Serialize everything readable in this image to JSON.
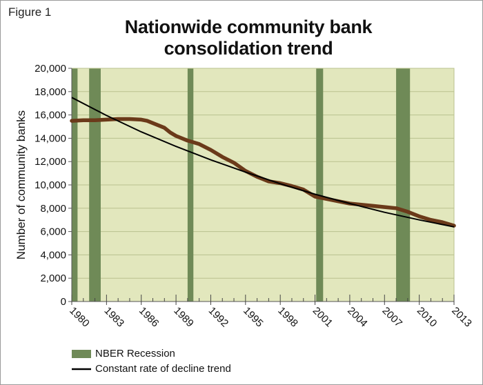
{
  "figure_label": "Figure 1",
  "chart_data": {
    "type": "line",
    "title": "Nationwide community bank consolidation trend",
    "title_lines": [
      "Nationwide community bank",
      "consolidation trend"
    ],
    "ylabel": "Number of community banks",
    "xlabel": "",
    "xlim": [
      1980,
      2013
    ],
    "ylim": [
      0,
      20000
    ],
    "x_ticks": [
      1980,
      1983,
      1986,
      1989,
      1992,
      1995,
      1998,
      2001,
      2004,
      2007,
      2010,
      2013
    ],
    "y_ticks": [
      0,
      2000,
      4000,
      6000,
      8000,
      10000,
      12000,
      14000,
      16000,
      18000,
      20000
    ],
    "y_tick_labels": [
      "0",
      "2,000",
      "4,000",
      "6,000",
      "8,000",
      "10,000",
      "12,000",
      "14,000",
      "16,000",
      "18,000",
      "20,000"
    ],
    "grid": true,
    "legend_position": "bottom",
    "colors": {
      "plot_background": "#e2e7bd",
      "grid": "#b9c18e",
      "recession": "#6f8a57",
      "series": "#6b3a1a",
      "trend": "#000000"
    },
    "recessions": [
      {
        "start": 1980.0,
        "end": 1980.5
      },
      {
        "start": 1981.5,
        "end": 1982.5
      },
      {
        "start": 1990.0,
        "end": 1990.5
      },
      {
        "start": 2001.1,
        "end": 2001.7
      },
      {
        "start": 2008.0,
        "end": 2009.2
      }
    ],
    "series": [
      {
        "x": [
          1980,
          1981,
          1982,
          1983,
          1984,
          1985,
          1986,
          1986.5,
          1987,
          1988,
          1988.5,
          1989,
          1990,
          1991,
          1992,
          1993,
          1994,
          1995,
          1996,
          1997,
          1998,
          1999,
          2000,
          2001,
          2002,
          2003,
          2004,
          2005,
          2006,
          2007,
          2008,
          2009,
          2010,
          2011,
          2012,
          2013
        ],
        "y": [
          15500,
          15550,
          15550,
          15600,
          15650,
          15650,
          15600,
          15500,
          15300,
          14900,
          14500,
          14200,
          13800,
          13500,
          13000,
          12400,
          11900,
          11200,
          10700,
          10300,
          10150,
          9900,
          9600,
          9000,
          8800,
          8600,
          8400,
          8300,
          8200,
          8100,
          8000,
          7700,
          7300,
          7000,
          6800,
          6500
        ]
      },
      {
        "name": "Constant rate of decline trend",
        "x": [
          1980,
          1983,
          1986,
          1989,
          1992,
          1995,
          1998,
          2001,
          2004,
          2007,
          2010,
          2013
        ],
        "y": [
          17500,
          15950,
          14550,
          13300,
          12150,
          11100,
          10100,
          9200,
          8400,
          7650,
          7000,
          6400
        ]
      }
    ]
  },
  "legend": [
    {
      "label": "NBER Recession",
      "kind": "bar"
    },
    {
      "label": "Constant rate of decline trend",
      "kind": "line"
    }
  ]
}
